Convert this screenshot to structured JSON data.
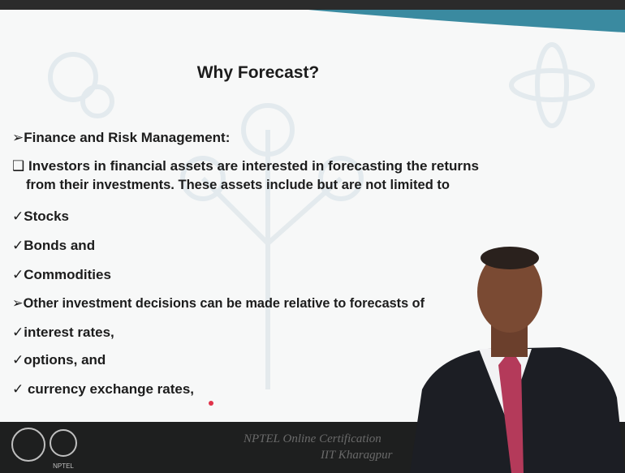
{
  "slide": {
    "title": "Why Forecast?",
    "items": [
      "➢Finance and Risk Management:",
      "❑ Investors in financial assets are interested in forecasting the returns",
      "from their investments. These assets include but are not limited to",
      "✓Stocks",
      "✓Bonds and",
      "✓Commodities",
      "➢Other investment decisions can be made relative to forecasts of",
      "✓interest rates,",
      "✓options, and",
      "✓ currency exchange rates,"
    ],
    "footer": [
      "NPTEL Online Certification",
      "IIT Kharagpur"
    ],
    "logo_label": "NPTEL"
  }
}
